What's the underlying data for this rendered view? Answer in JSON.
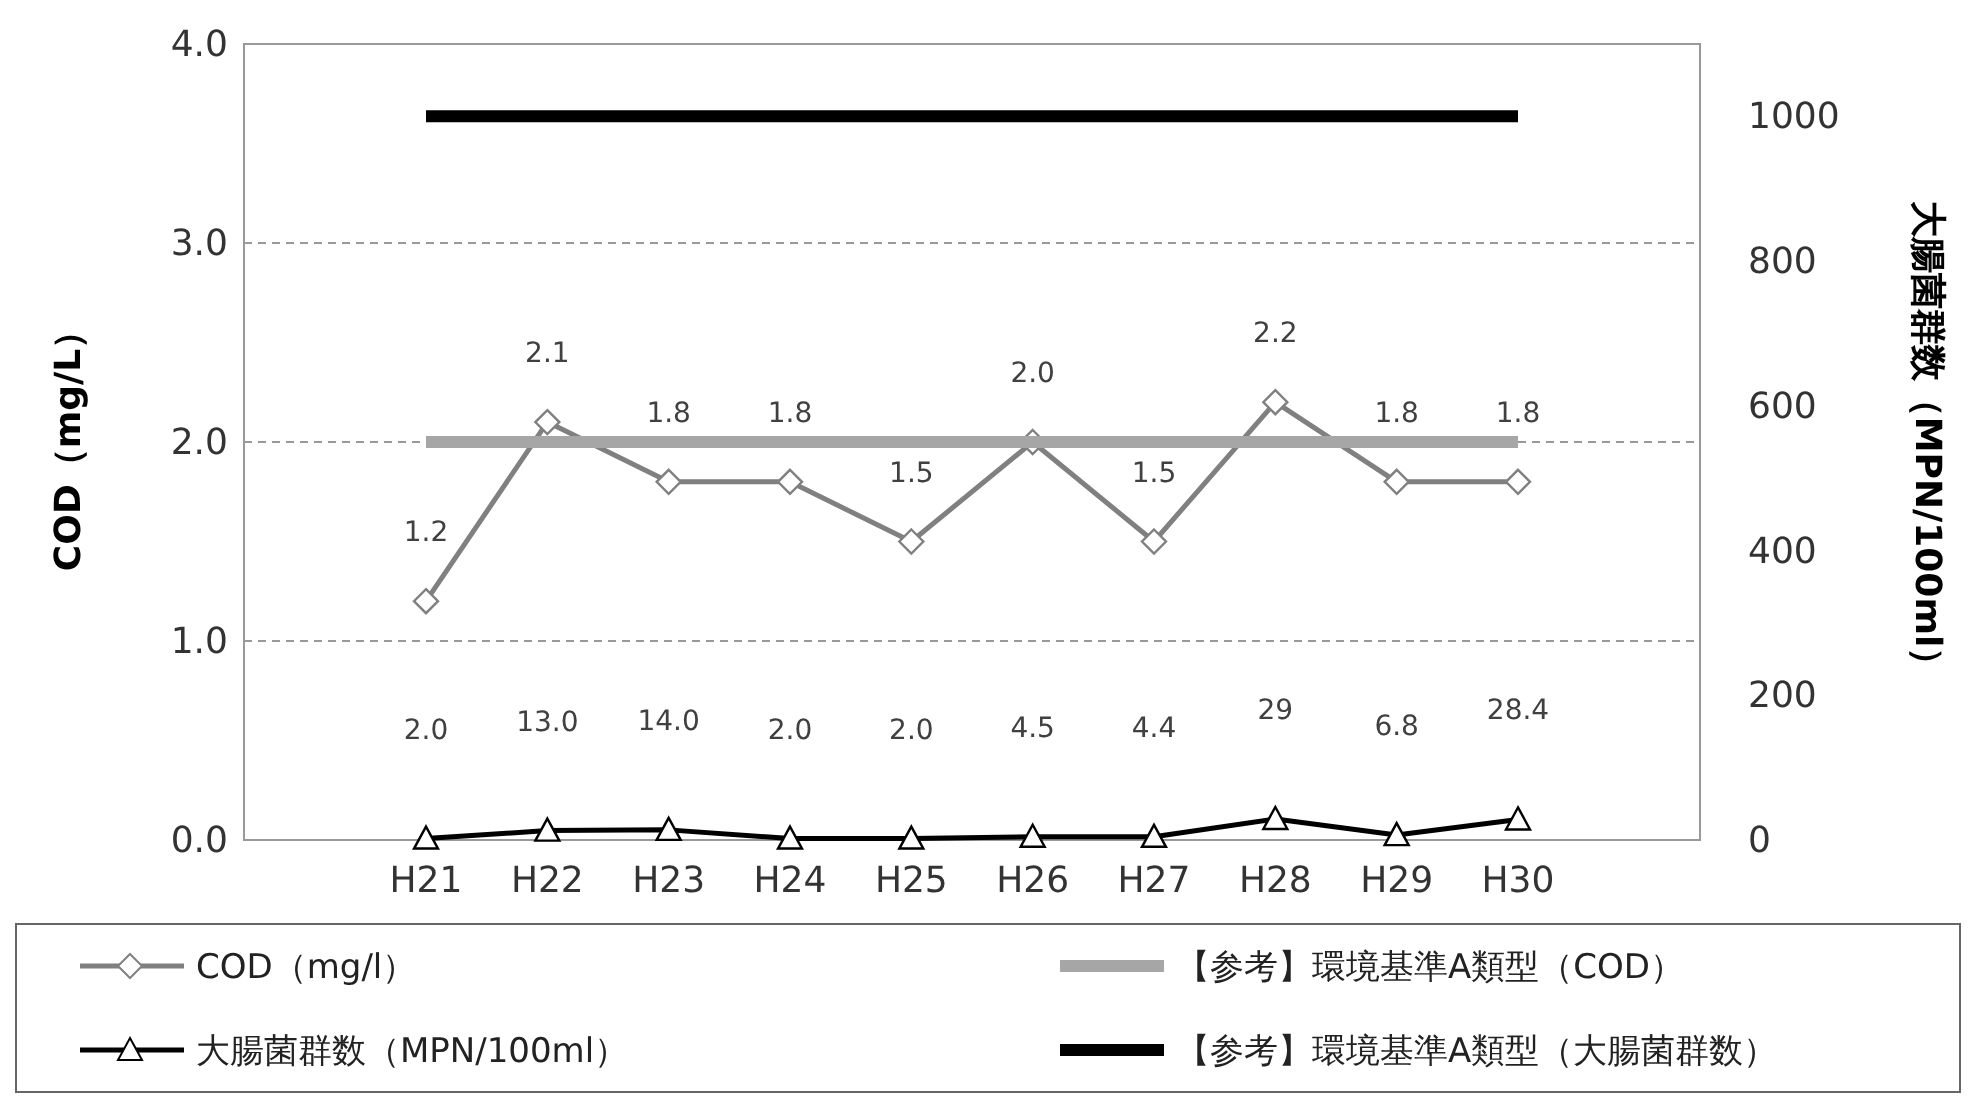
{
  "chart_data": {
    "type": "line",
    "ylabel": "COD（mg/L）",
    "y2label": "大腸菌群数（MPN/100ml）",
    "categories": [
      "H21",
      "H22",
      "H23",
      "H24",
      "H25",
      "H26",
      "H27",
      "H28",
      "H29",
      "H30"
    ],
    "ylim": [
      0,
      4
    ],
    "yticks": [
      {
        "value": 0,
        "label": "0.0"
      },
      {
        "value": 1,
        "label": "1.0"
      },
      {
        "value": 2,
        "label": "2.0"
      },
      {
        "value": 3,
        "label": "3.0"
      },
      {
        "value": 4,
        "label": "4.0"
      }
    ],
    "y2lim": [
      0,
      1100
    ],
    "y2ticks": [
      0,
      200,
      400,
      600,
      800,
      1000
    ],
    "grid": "y",
    "legend": "bottom",
    "series": [
      {
        "name": "COD（mg/l）",
        "color": "#808080",
        "marker": "diamond",
        "values": [
          1.2,
          2.1,
          1.8,
          1.8,
          1.5,
          2.0,
          1.5,
          2.2,
          1.8,
          1.8
        ],
        "value_labels": [
          "1.2",
          "2.1",
          "1.8",
          "1.8",
          "1.5",
          "2.0",
          "1.5",
          "2.2",
          "1.8",
          "1.8"
        ]
      },
      {
        "name": "【参考】環境基準A類型（COD）",
        "color": "#a6a6a6",
        "marker": "none",
        "values": [
          2,
          2,
          2,
          2,
          2,
          2,
          2,
          2,
          2,
          2
        ]
      },
      {
        "name": "大腸菌群数（MPN/100ml）",
        "color": "#000000",
        "marker": "triangle",
        "axis": "y2",
        "values": [
          2.0,
          13.0,
          14.0,
          2.0,
          2.0,
          4.5,
          4.4,
          29,
          6.8,
          28.4
        ],
        "value_labels": [
          "2.0",
          "13.0",
          "14.0",
          "2.0",
          "2.0",
          "4.5",
          "4.4",
          "29",
          "6.8",
          "28.4"
        ]
      },
      {
        "name": "【参考】環境基準A類型（大腸菌群数）",
        "color": "#000000",
        "marker": "none",
        "axis": "y2",
        "values": [
          1000,
          1000,
          1000,
          1000,
          1000,
          1000,
          1000,
          1000,
          1000,
          1000
        ]
      }
    ]
  }
}
